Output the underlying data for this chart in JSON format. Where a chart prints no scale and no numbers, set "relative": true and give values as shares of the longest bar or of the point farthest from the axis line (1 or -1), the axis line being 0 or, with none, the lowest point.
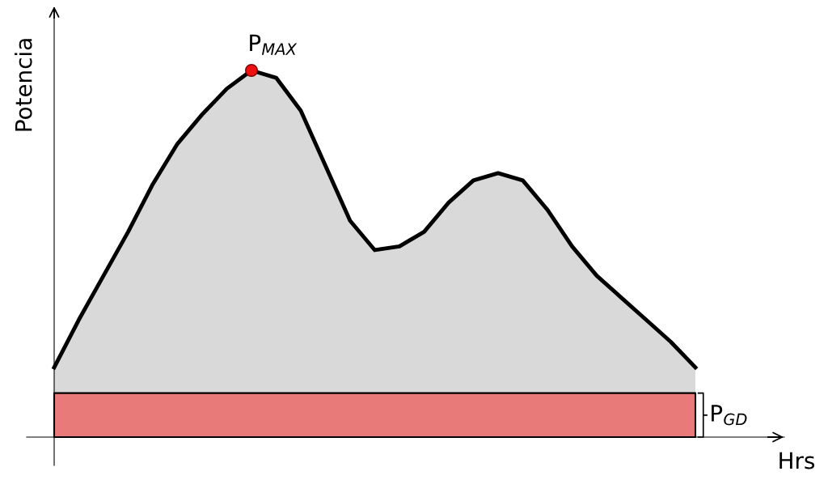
{
  "chart_data": {
    "type": "area",
    "relative": true,
    "xlabel": "Hrs",
    "ylabel": "Potencia",
    "tick_labels": false,
    "categories": [
      null,
      null,
      null,
      null,
      null,
      null,
      null,
      null,
      null,
      null,
      null,
      null,
      null,
      null,
      null,
      null,
      null,
      null,
      null,
      null,
      null,
      null,
      null,
      null,
      null,
      null,
      null
    ],
    "series": [
      {
        "color": "#000000",
        "values": [
          0.19,
          0.32,
          0.44,
          0.56,
          0.69,
          0.8,
          0.88,
          0.95,
          1,
          0.98,
          0.89,
          0.74,
          0.59,
          0.51,
          0.52,
          0.56,
          0.64,
          0.7,
          0.72,
          0.7,
          0.62,
          0.52,
          0.44,
          0.38,
          0.32,
          0.26,
          0.19
        ]
      }
    ],
    "bands": [
      {
        "axis": "y",
        "from": 0,
        "to": 0.12,
        "label": "P$_{GD}$",
        "color": "#e87a7a"
      }
    ],
    "annotations": [
      "P$_{MAX}$"
    ]
  }
}
